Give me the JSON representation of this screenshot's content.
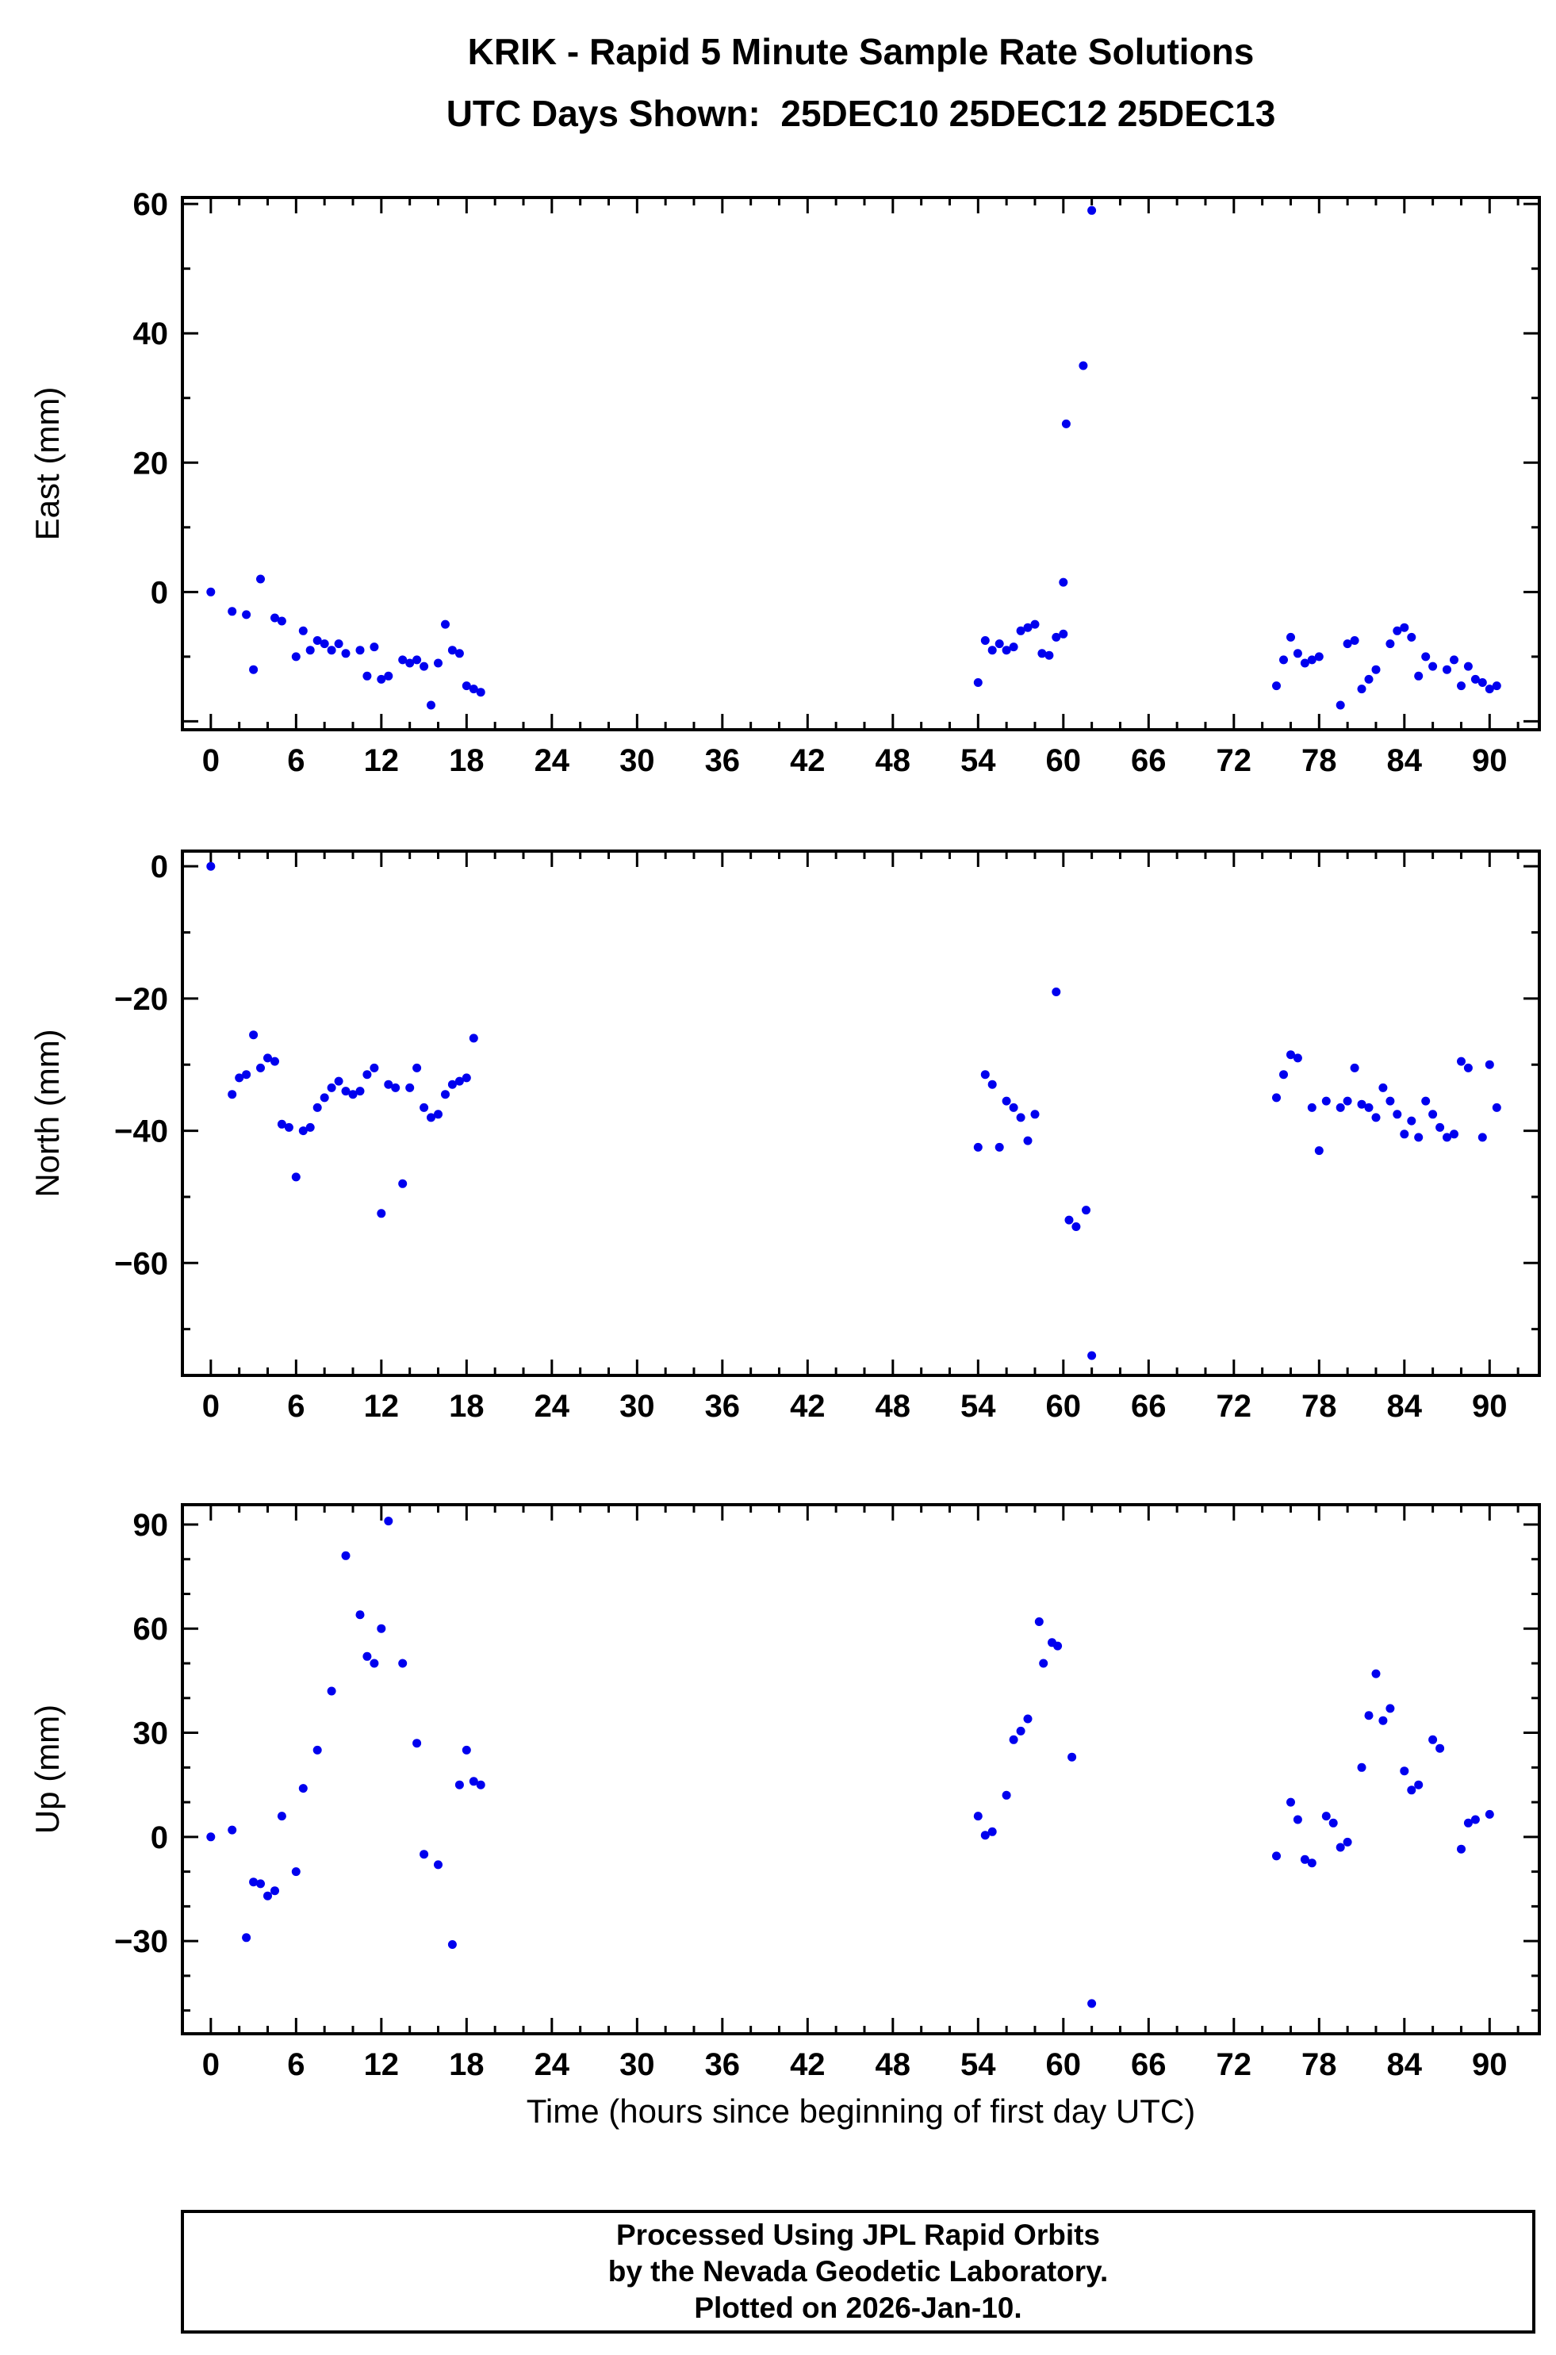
{
  "title": "KRIK - Rapid 5 Minute Sample Rate Solutions",
  "subtitle": "UTC Days Shown:  25DEC10 25DEC12 25DEC13",
  "xlabel": "Time (hours since beginning of first day UTC)",
  "footer": {
    "line1": "Processed Using JPL Rapid Orbits",
    "line2": "by the Nevada Geodetic Laboratory.",
    "line3": "Plotted on 2026-Jan-10."
  },
  "colors": {
    "point": "#0000ee",
    "axis": "#000000",
    "text": "#000000"
  },
  "chart_data": [
    {
      "type": "scatter",
      "name": "east",
      "ylabel": "East (mm)",
      "xlim": [
        -2,
        93.5
      ],
      "ylim": [
        -21.3,
        61
      ],
      "xticks": [
        0,
        6,
        12,
        18,
        24,
        30,
        36,
        42,
        48,
        54,
        60,
        66,
        72,
        78,
        84,
        90
      ],
      "yticks": [
        0,
        20,
        40,
        60
      ],
      "x_major_step": 6,
      "x_minor_step": 2,
      "y_major_step": 20,
      "y_minor_step": 10,
      "grid": false,
      "points": [
        [
          0,
          0
        ],
        [
          1.5,
          -3
        ],
        [
          2.5,
          -3.5
        ],
        [
          3,
          -12
        ],
        [
          3.5,
          2
        ],
        [
          4.5,
          -4
        ],
        [
          5,
          -4.5
        ],
        [
          6,
          -10
        ],
        [
          6.5,
          -6
        ],
        [
          7,
          -9
        ],
        [
          7.5,
          -7.5
        ],
        [
          8,
          -8
        ],
        [
          8.5,
          -9
        ],
        [
          9,
          -8
        ],
        [
          9.5,
          -9.5
        ],
        [
          10.5,
          -9
        ],
        [
          11,
          -13
        ],
        [
          11.5,
          -8.5
        ],
        [
          12,
          -13.5
        ],
        [
          12.5,
          -13
        ],
        [
          13.5,
          -10.5
        ],
        [
          14,
          -11
        ],
        [
          14.5,
          -10.5
        ],
        [
          15,
          -11.5
        ],
        [
          15.5,
          -17.5
        ],
        [
          16,
          -11
        ],
        [
          16.5,
          -5
        ],
        [
          17,
          -9
        ],
        [
          17.5,
          -9.5
        ],
        [
          18,
          -14.5
        ],
        [
          18.5,
          -15
        ],
        [
          19,
          -15.5
        ],
        [
          54,
          -14
        ],
        [
          54.5,
          -7.5
        ],
        [
          55,
          -9
        ],
        [
          55.5,
          -8
        ],
        [
          56,
          -9
        ],
        [
          56.5,
          -8.5
        ],
        [
          57,
          -6
        ],
        [
          57.5,
          -5.5
        ],
        [
          58,
          -5
        ],
        [
          58.5,
          -9.5
        ],
        [
          59,
          -9.8
        ],
        [
          59.5,
          -7
        ],
        [
          60,
          -6.5
        ],
        [
          60,
          1.5
        ],
        [
          60.2,
          26
        ],
        [
          61.4,
          35
        ],
        [
          62,
          59
        ],
        [
          75,
          -14.5
        ],
        [
          75.5,
          -10.5
        ],
        [
          76,
          -7
        ],
        [
          76.5,
          -9.5
        ],
        [
          77,
          -11
        ],
        [
          77.5,
          -10.5
        ],
        [
          78,
          -10
        ],
        [
          79.5,
          -17.5
        ],
        [
          80,
          -8
        ],
        [
          80.5,
          -7.5
        ],
        [
          81,
          -15
        ],
        [
          81.5,
          -13.5
        ],
        [
          82,
          -12
        ],
        [
          83,
          -8
        ],
        [
          83.5,
          -6
        ],
        [
          84,
          -5.5
        ],
        [
          84.5,
          -7
        ],
        [
          85,
          -13
        ],
        [
          85.5,
          -10
        ],
        [
          86,
          -11.5
        ],
        [
          87,
          -12
        ],
        [
          87.5,
          -10.5
        ],
        [
          88,
          -14.5
        ],
        [
          88.5,
          -11.5
        ],
        [
          89,
          -13.5
        ],
        [
          89.5,
          -14
        ],
        [
          90,
          -15
        ],
        [
          90.5,
          -14.5
        ]
      ]
    },
    {
      "type": "scatter",
      "name": "north",
      "ylabel": "North (mm)",
      "xlim": [
        -2,
        93.5
      ],
      "ylim": [
        -77,
        2.3
      ],
      "xticks": [
        0,
        6,
        12,
        18,
        24,
        30,
        36,
        42,
        48,
        54,
        60,
        66,
        72,
        78,
        84,
        90
      ],
      "yticks": [
        0,
        -20,
        -40,
        -60
      ],
      "x_major_step": 6,
      "x_minor_step": 2,
      "y_major_step": 20,
      "y_minor_step": 10,
      "grid": false,
      "points": [
        [
          0,
          0
        ],
        [
          1.5,
          -34.5
        ],
        [
          2,
          -32
        ],
        [
          2.5,
          -31.5
        ],
        [
          3,
          -25.5
        ],
        [
          3.5,
          -30.5
        ],
        [
          4,
          -29
        ],
        [
          4.5,
          -29.5
        ],
        [
          5,
          -39
        ],
        [
          5.5,
          -39.5
        ],
        [
          6,
          -47
        ],
        [
          6.5,
          -40
        ],
        [
          7,
          -39.5
        ],
        [
          7.5,
          -36.5
        ],
        [
          8,
          -35
        ],
        [
          8.5,
          -33.5
        ],
        [
          9,
          -32.5
        ],
        [
          9.5,
          -34
        ],
        [
          10,
          -34.5
        ],
        [
          10.5,
          -34
        ],
        [
          11,
          -31.5
        ],
        [
          11.5,
          -30.5
        ],
        [
          12,
          -52.5
        ],
        [
          12.5,
          -33
        ],
        [
          13,
          -33.5
        ],
        [
          13.5,
          -48
        ],
        [
          14,
          -33.5
        ],
        [
          14.5,
          -30.5
        ],
        [
          15,
          -36.5
        ],
        [
          15.5,
          -38
        ],
        [
          16,
          -37.5
        ],
        [
          16.5,
          -34.5
        ],
        [
          17,
          -33
        ],
        [
          17.5,
          -32.5
        ],
        [
          18,
          -32
        ],
        [
          18.5,
          -26
        ],
        [
          54,
          -42.5
        ],
        [
          54.5,
          -31.5
        ],
        [
          55,
          -33
        ],
        [
          55.5,
          -42.5
        ],
        [
          56,
          -35.5
        ],
        [
          56.5,
          -36.5
        ],
        [
          57,
          -38
        ],
        [
          57.5,
          -41.5
        ],
        [
          58,
          -37.5
        ],
        [
          59.5,
          -19
        ],
        [
          60.4,
          -53.5
        ],
        [
          60.9,
          -54.5
        ],
        [
          61.6,
          -52
        ],
        [
          62,
          -74
        ],
        [
          75,
          -35
        ],
        [
          75.5,
          -31.5
        ],
        [
          76,
          -28.5
        ],
        [
          76.5,
          -29
        ],
        [
          77.5,
          -36.5
        ],
        [
          78,
          -43
        ],
        [
          78.5,
          -35.5
        ],
        [
          79.5,
          -36.5
        ],
        [
          80,
          -35.5
        ],
        [
          80.5,
          -30.5
        ],
        [
          81,
          -36
        ],
        [
          81.5,
          -36.5
        ],
        [
          82,
          -38
        ],
        [
          82.5,
          -33.5
        ],
        [
          83,
          -35.5
        ],
        [
          83.5,
          -37.5
        ],
        [
          84,
          -40.5
        ],
        [
          84.5,
          -38.5
        ],
        [
          85,
          -41
        ],
        [
          85.5,
          -35.5
        ],
        [
          86,
          -37.5
        ],
        [
          86.5,
          -39.5
        ],
        [
          87,
          -41
        ],
        [
          87.5,
          -40.5
        ],
        [
          88,
          -29.5
        ],
        [
          88.5,
          -30.5
        ],
        [
          89.5,
          -41
        ],
        [
          90,
          -30
        ],
        [
          90.5,
          -36.5
        ]
      ]
    },
    {
      "type": "scatter",
      "name": "up",
      "ylabel": "Up (mm)",
      "xlim": [
        -2,
        93.5
      ],
      "ylim": [
        -56.7,
        95.7
      ],
      "xticks": [
        0,
        6,
        12,
        18,
        24,
        30,
        36,
        42,
        48,
        54,
        60,
        66,
        72,
        78,
        84,
        90
      ],
      "yticks": [
        90,
        60,
        30,
        0,
        -30
      ],
      "x_major_step": 6,
      "x_minor_step": 2,
      "y_major_step": 30,
      "y_minor_step": 10,
      "grid": false,
      "points": [
        [
          0,
          0
        ],
        [
          1.5,
          2
        ],
        [
          2.5,
          -29
        ],
        [
          3,
          -13
        ],
        [
          3.5,
          -13.5
        ],
        [
          4,
          -17
        ],
        [
          4.5,
          -15.5
        ],
        [
          5,
          6
        ],
        [
          6,
          -10
        ],
        [
          6.5,
          14
        ],
        [
          7.5,
          25
        ],
        [
          8.5,
          42
        ],
        [
          9.5,
          81
        ],
        [
          10.5,
          64
        ],
        [
          11,
          52
        ],
        [
          11.5,
          50
        ],
        [
          12,
          60
        ],
        [
          12.5,
          91
        ],
        [
          13.5,
          50
        ],
        [
          14.5,
          27
        ],
        [
          15,
          -5
        ],
        [
          16,
          -8
        ],
        [
          17,
          -31
        ],
        [
          17.5,
          15
        ],
        [
          18,
          25
        ],
        [
          18.5,
          16
        ],
        [
          19,
          15
        ],
        [
          54,
          6
        ],
        [
          54.5,
          0.5
        ],
        [
          55,
          1.5
        ],
        [
          56,
          12
        ],
        [
          56.5,
          28
        ],
        [
          57,
          30.5
        ],
        [
          57.5,
          34
        ],
        [
          58.3,
          62
        ],
        [
          58.6,
          50
        ],
        [
          59.2,
          56
        ],
        [
          59.6,
          55
        ],
        [
          60.6,
          23
        ],
        [
          62,
          -48
        ],
        [
          75,
          -5.5
        ],
        [
          76,
          10
        ],
        [
          76.5,
          5
        ],
        [
          77,
          -6.5
        ],
        [
          77.5,
          -7.5
        ],
        [
          78.5,
          6
        ],
        [
          79,
          4
        ],
        [
          79.5,
          -3
        ],
        [
          80,
          -1.5
        ],
        [
          81,
          20
        ],
        [
          81.5,
          35
        ],
        [
          82,
          47
        ],
        [
          82.5,
          33.5
        ],
        [
          83,
          37
        ],
        [
          84,
          19
        ],
        [
          84.5,
          13.5
        ],
        [
          85,
          15
        ],
        [
          86,
          28
        ],
        [
          86.5,
          25.5
        ],
        [
          88,
          -3.5
        ],
        [
          88.5,
          4
        ],
        [
          89,
          5
        ],
        [
          90,
          6.5
        ]
      ]
    }
  ]
}
